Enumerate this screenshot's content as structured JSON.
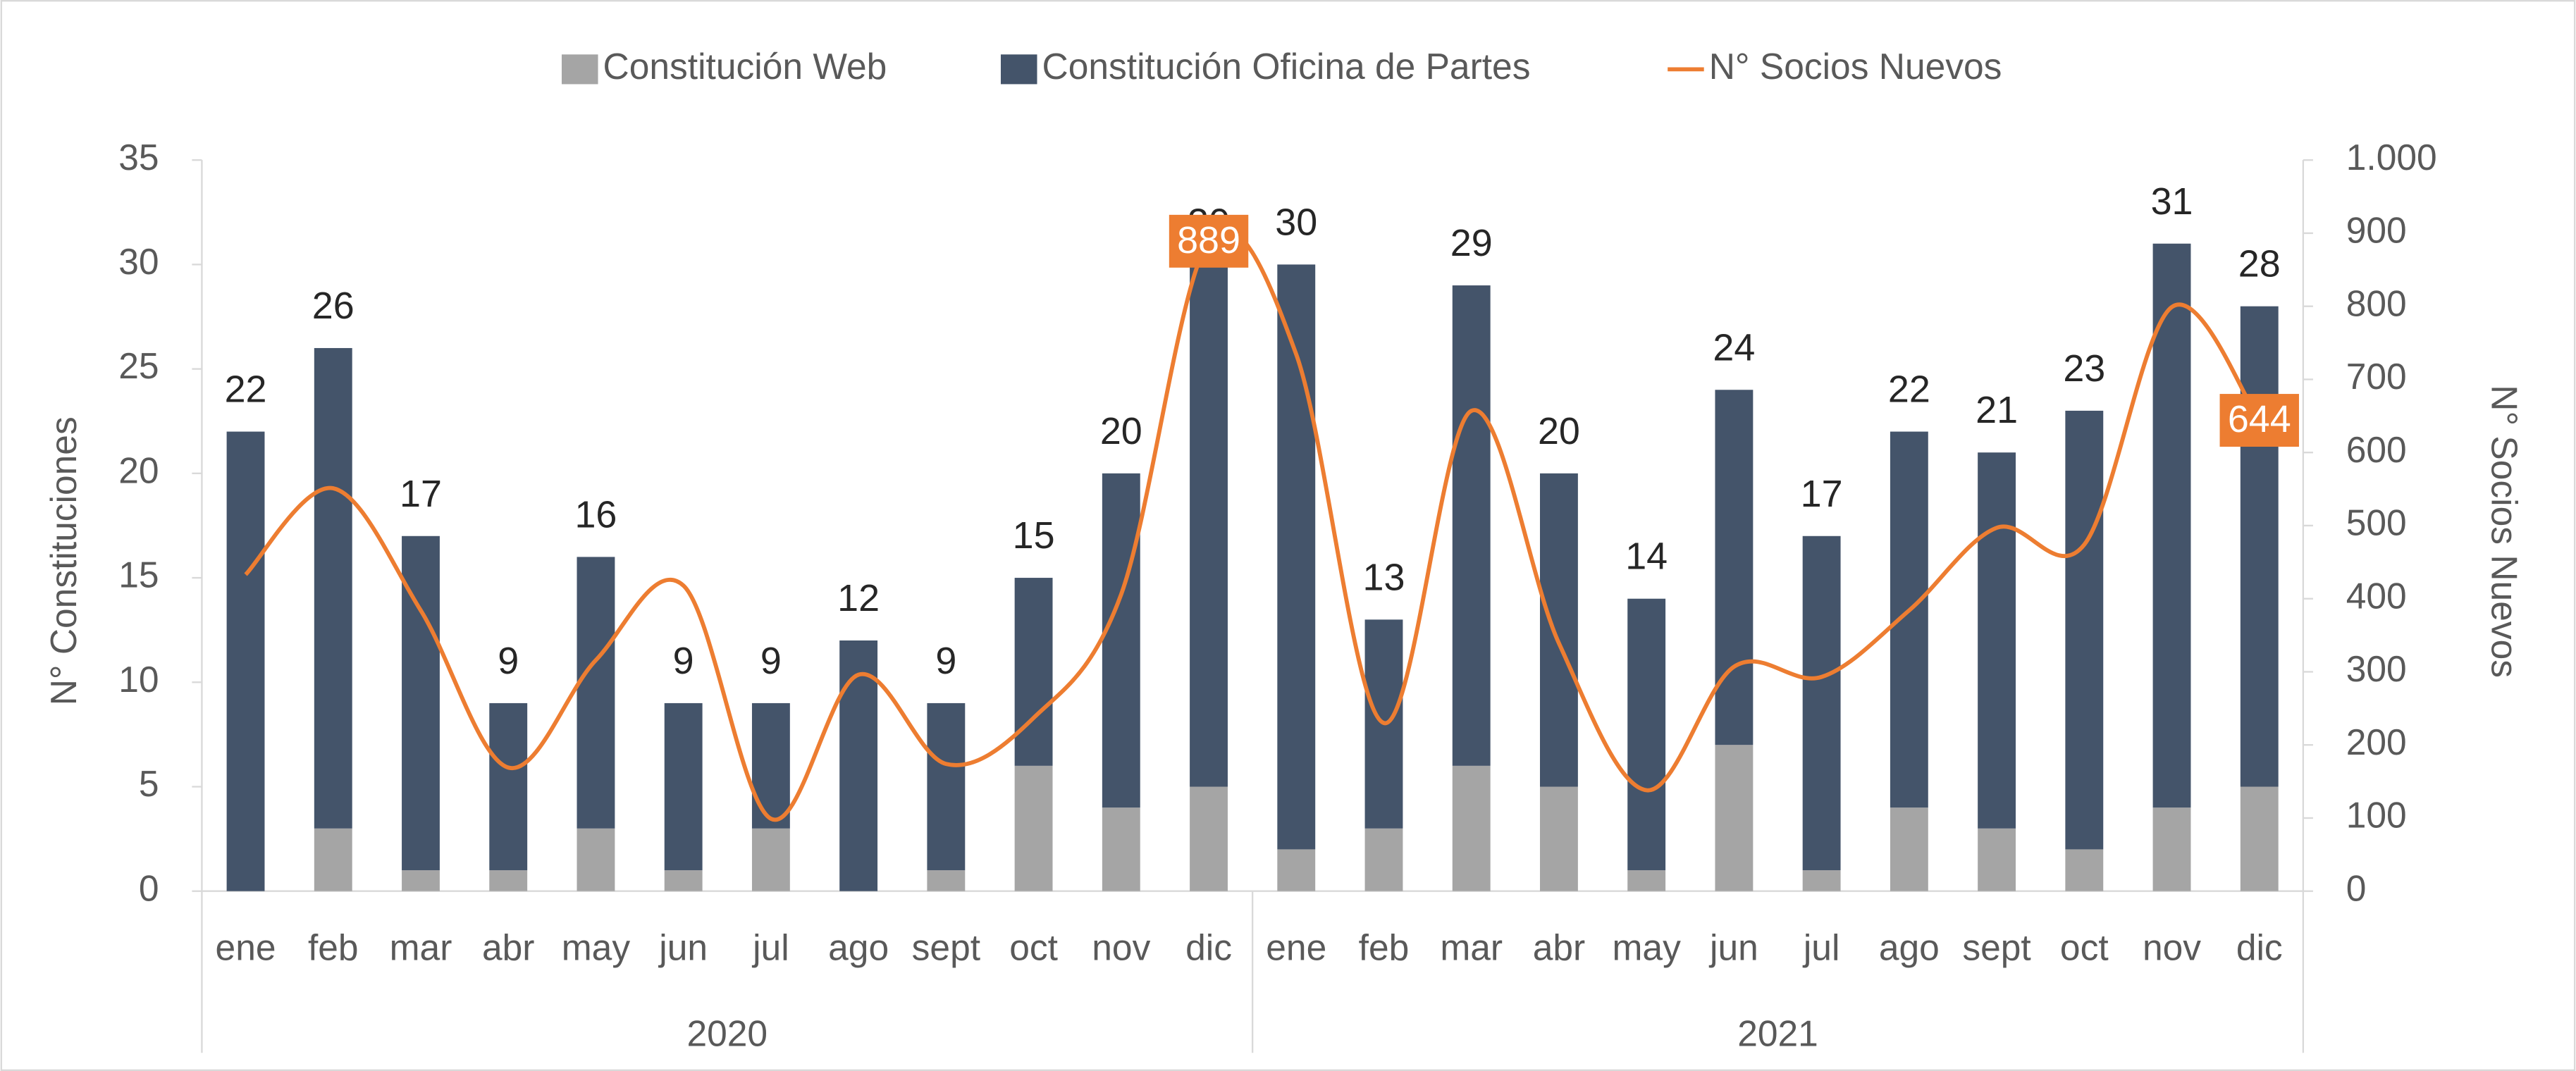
{
  "chart_data": {
    "type": "bar",
    "stacked": true,
    "categories": [
      "ene",
      "feb",
      "mar",
      "abr",
      "may",
      "jun",
      "jul",
      "ago",
      "sept",
      "oct",
      "nov",
      "dic",
      "ene",
      "feb",
      "mar",
      "abr",
      "may",
      "jun",
      "jul",
      "ago",
      "sept",
      "oct",
      "nov",
      "dic"
    ],
    "years": [
      "2020",
      "2021"
    ],
    "series": [
      {
        "name": "Constitución Web",
        "color": "#a5a5a5",
        "values": [
          0,
          3,
          1,
          1,
          3,
          1,
          3,
          0,
          1,
          6,
          4,
          5,
          2,
          3,
          6,
          5,
          1,
          7,
          1,
          4,
          3,
          2,
          4,
          5
        ]
      },
      {
        "name": "Constitución Oficina de Partes",
        "color": "#44546a",
        "values": [
          22,
          23,
          16,
          8,
          13,
          8,
          6,
          12,
          8,
          9,
          16,
          25,
          28,
          10,
          23,
          15,
          13,
          17,
          16,
          18,
          18,
          21,
          27,
          23
        ]
      },
      {
        "name": "N° Socios Nuevos",
        "type": "line",
        "axis": "y2",
        "color": "#ed7d31",
        "values": [
          433,
          551,
          384,
          169,
          316,
          418,
          99,
          296,
          174,
          237,
          406,
          889,
          734,
          230,
          657,
          339,
          138,
          307,
          293,
          384,
          497,
          474,
          799,
          644
        ],
        "value_labels": [
          null,
          null,
          null,
          null,
          null,
          null,
          null,
          null,
          null,
          null,
          null,
          "889",
          null,
          null,
          null,
          null,
          null,
          null,
          null,
          null,
          null,
          null,
          null,
          "644"
        ]
      }
    ],
    "totals": [
      "22",
      "26",
      "17",
      "9",
      "16",
      "9",
      "9",
      "12",
      "9",
      "15",
      "20",
      "30",
      "30",
      "13",
      "29",
      "20",
      "14",
      "24",
      "17",
      "22",
      "21",
      "23",
      "31",
      "28"
    ],
    "ylabel": "N° Constituciones",
    "y2label": "N° Socios Nuevos",
    "ylim": [
      0,
      35
    ],
    "yticks": [
      0,
      5,
      10,
      15,
      20,
      25,
      30,
      35
    ],
    "y2lim": [
      0,
      1000
    ],
    "y2ticks": [
      0,
      100,
      200,
      300,
      400,
      500,
      600,
      700,
      800,
      900,
      {
        "value": 1000,
        "label": "1.000"
      }
    ],
    "legend": "top"
  }
}
